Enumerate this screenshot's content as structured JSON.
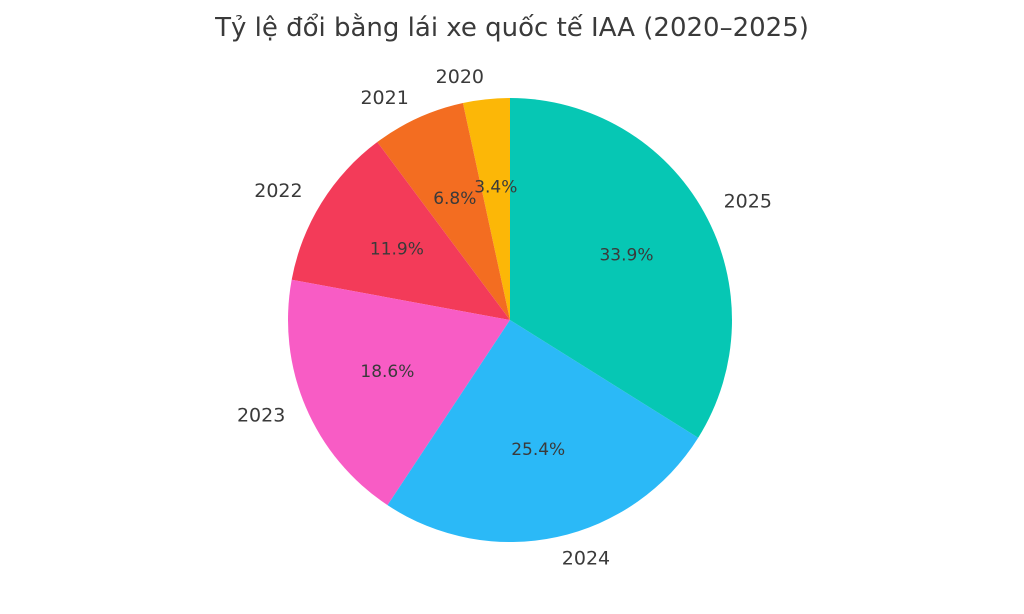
{
  "title": "Tỷ lệ đổi bằng lái xe quốc tế IAA (2020–2025)",
  "colors": {
    "background": "#ffffff",
    "text": "#3a3a3a"
  },
  "chart_data": {
    "type": "pie",
    "title": "Tỷ lệ đổi bằng lái xe quốc tế IAA (2020–2025)",
    "labels": [
      "2020",
      "2021",
      "2022",
      "2023",
      "2024",
      "2025"
    ],
    "values": [
      3.4,
      6.8,
      11.9,
      18.6,
      25.4,
      33.9
    ],
    "pct_labels": [
      "3.4%",
      "6.8%",
      "11.9%",
      "18.6%",
      "25.4%",
      "33.9%"
    ],
    "slice_colors": [
      "#FCB707",
      "#F36D21",
      "#F33B59",
      "#F85CC5",
      "#2BB9F7",
      "#06C7B4"
    ],
    "start_angle": 90,
    "direction": "counterclockwise",
    "label_distance": 1.1,
    "pct_distance": 0.6,
    "legend": "none",
    "grid": "off"
  }
}
